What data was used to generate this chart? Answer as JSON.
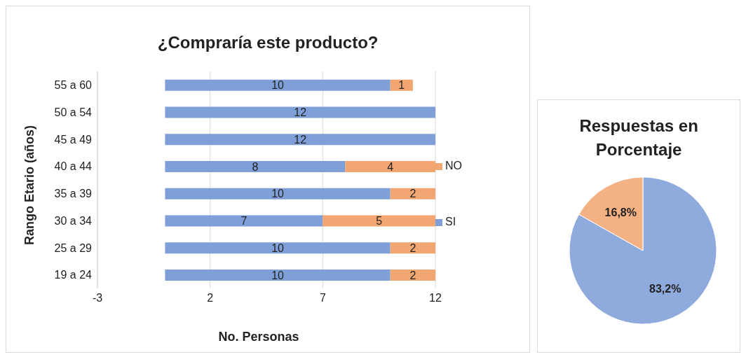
{
  "chart_data": [
    {
      "type": "bar",
      "orientation": "horizontal",
      "stacked": true,
      "title": "¿Compraría este producto?",
      "xlabel": "No. Personas",
      "ylabel": "Rango Etario (años)",
      "categories": [
        "55 a 60",
        "50 a 54",
        "45 a 49",
        "40 a 44",
        "35 a 39",
        "30 a 34",
        "25 a 29",
        "19 a 24"
      ],
      "series": [
        {
          "name": "SI",
          "color": "#7f9fd8",
          "values": [
            10,
            12,
            12,
            8,
            10,
            7,
            10,
            10
          ]
        },
        {
          "name": "NO",
          "color": "#f2a772",
          "values": [
            1,
            null,
            null,
            4,
            2,
            5,
            2,
            2
          ]
        }
      ],
      "xlim": [
        -3,
        12
      ],
      "xticks": [
        -3,
        2,
        7,
        12
      ],
      "grid": "x",
      "legend": "right",
      "data_labels": true
    },
    {
      "type": "pie",
      "title": "Respuestas en Porcentaje",
      "categories": [
        null,
        null
      ],
      "values": [
        83.2,
        16.8
      ],
      "colors": [
        "#8faadc",
        "#f4b183"
      ],
      "value_labels": [
        "83,2%",
        "16,8%"
      ]
    }
  ]
}
